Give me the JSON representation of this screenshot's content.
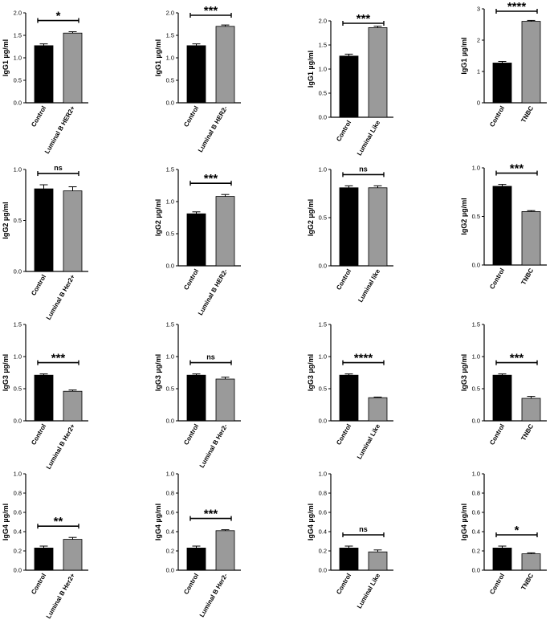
{
  "colors": {
    "control": "#000000",
    "case": "#9a9a9a",
    "axis": "#000000"
  },
  "chart_data": [
    {
      "type": "bar",
      "ylabel": "IgG1 µg/ml",
      "ylim": [
        0,
        2.0
      ],
      "yticks": [
        "0.0",
        "0.5",
        "1.0",
        "1.5",
        "2.0"
      ],
      "categories": [
        "Control",
        "Luminal B HER2+"
      ],
      "values": [
        1.27,
        1.55
      ],
      "errors": [
        0.04,
        0.03
      ],
      "significance": "*"
    },
    {
      "type": "bar",
      "ylabel": "IgG1 µg/ml",
      "ylim": [
        0,
        2.0
      ],
      "yticks": [
        "0.0",
        "0.5",
        "1.0",
        "1.5",
        "2.0"
      ],
      "categories": [
        "Control",
        "Luminal B HER2-"
      ],
      "values": [
        1.27,
        1.7
      ],
      "errors": [
        0.04,
        0.03
      ],
      "significance": "***"
    },
    {
      "type": "bar",
      "ylabel": "IgG1 µg/ml",
      "ylim": [
        0,
        2.0
      ],
      "yticks": [
        "0.0",
        "0.5",
        "1.0",
        "1.5",
        "2.0"
      ],
      "categories": [
        "Control",
        "Luminal Like"
      ],
      "values": [
        1.27,
        1.86
      ],
      "errors": [
        0.04,
        0.03
      ],
      "significance": "***"
    },
    {
      "type": "bar",
      "ylabel": "IgG1 µg/ml",
      "ylim": [
        0,
        3
      ],
      "yticks": [
        "0",
        "1",
        "2",
        "3"
      ],
      "categories": [
        "Control",
        "TNBC"
      ],
      "values": [
        1.27,
        2.6
      ],
      "errors": [
        0.05,
        0.03
      ],
      "significance": "****"
    },
    {
      "type": "bar",
      "ylabel": "IgG2 µg/ml",
      "ylim": [
        0,
        1.0
      ],
      "yticks": [
        "0.0",
        "0.5",
        "1.0"
      ],
      "categories": [
        "Control",
        "Luminal B Her2+"
      ],
      "values": [
        0.81,
        0.79
      ],
      "errors": [
        0.04,
        0.04
      ],
      "significance": "ns"
    },
    {
      "type": "bar",
      "ylabel": "IgG2 µg/ml",
      "ylim": [
        0,
        1.5
      ],
      "yticks": [
        "0.0",
        "0.5",
        "1.0",
        "1.5"
      ],
      "categories": [
        "Control",
        "Luminal B HER2-"
      ],
      "values": [
        0.81,
        1.08
      ],
      "errors": [
        0.03,
        0.03
      ],
      "significance": "***"
    },
    {
      "type": "bar",
      "ylabel": "IgG2 µg/ml",
      "ylim": [
        0,
        1.0
      ],
      "yticks": [
        "0.0",
        "0.5",
        "1.0"
      ],
      "categories": [
        "Control",
        "Luminal like"
      ],
      "values": [
        0.81,
        0.81
      ],
      "errors": [
        0.02,
        0.02
      ],
      "significance": "ns"
    },
    {
      "type": "bar",
      "ylabel": "IgG2 µg/ml",
      "ylim": [
        0,
        1.0
      ],
      "yticks": [
        "0.0",
        "0.5",
        "1.0"
      ],
      "categories": [
        "Control",
        "TNBC"
      ],
      "values": [
        0.81,
        0.55
      ],
      "errors": [
        0.02,
        0.01
      ],
      "significance": "***"
    },
    {
      "type": "bar",
      "ylabel": "IgG3 µg/ml",
      "ylim": [
        0,
        1.5
      ],
      "yticks": [
        "0.0",
        "0.5",
        "1.0",
        "1.5"
      ],
      "categories": [
        "Control",
        "Luminal B Her2+"
      ],
      "values": [
        0.71,
        0.46
      ],
      "errors": [
        0.02,
        0.02
      ],
      "significance": "***"
    },
    {
      "type": "bar",
      "ylabel": "IgG3 µg/ml",
      "ylim": [
        0,
        1.5
      ],
      "yticks": [
        "0.0",
        "0.5",
        "1.0",
        "1.5"
      ],
      "categories": [
        "Control",
        "Luminal B Her2-"
      ],
      "values": [
        0.71,
        0.65
      ],
      "errors": [
        0.02,
        0.03
      ],
      "significance": "ns"
    },
    {
      "type": "bar",
      "ylabel": "IgG3 µg/ml",
      "ylim": [
        0,
        1.5
      ],
      "yticks": [
        "0.0",
        "0.5",
        "1.0",
        "1.5"
      ],
      "categories": [
        "Control",
        "Luminal Like"
      ],
      "values": [
        0.71,
        0.36
      ],
      "errors": [
        0.02,
        0.01
      ],
      "significance": "****"
    },
    {
      "type": "bar",
      "ylabel": "IgG3 µg/ml",
      "ylim": [
        0,
        1.5
      ],
      "yticks": [
        "0.0",
        "0.5",
        "1.0",
        "1.5"
      ],
      "categories": [
        "Control",
        "TNBC"
      ],
      "values": [
        0.71,
        0.35
      ],
      "errors": [
        0.02,
        0.03
      ],
      "significance": "***"
    },
    {
      "type": "bar",
      "ylabel": "IgG4 µg/ml",
      "ylim": [
        0,
        1.0
      ],
      "yticks": [
        "0.0",
        "0.2",
        "0.4",
        "0.6",
        "0.8",
        "1.0"
      ],
      "categories": [
        "Control",
        "Luminal B Her2+"
      ],
      "values": [
        0.23,
        0.32
      ],
      "errors": [
        0.02,
        0.02
      ],
      "significance": "**"
    },
    {
      "type": "bar",
      "ylabel": "IgG4 µg/ml",
      "ylim": [
        0,
        1.0
      ],
      "yticks": [
        "0.0",
        "0.2",
        "0.4",
        "0.6",
        "0.8",
        "1.0"
      ],
      "categories": [
        "Control",
        "Luminal B Her2-"
      ],
      "values": [
        0.23,
        0.41
      ],
      "errors": [
        0.02,
        0.01
      ],
      "significance": "***"
    },
    {
      "type": "bar",
      "ylabel": "IgG4 µg/ml",
      "ylim": [
        0,
        1.0
      ],
      "yticks": [
        "0.0",
        "0.2",
        "0.4",
        "0.6",
        "0.8",
        "1.0"
      ],
      "categories": [
        "Control",
        "Luminal Like"
      ],
      "values": [
        0.23,
        0.19
      ],
      "errors": [
        0.02,
        0.02
      ],
      "significance": "ns"
    },
    {
      "type": "bar",
      "ylabel": "IgG4 µg/ml",
      "ylim": [
        0,
        1.0
      ],
      "yticks": [
        "0.0",
        "0.2",
        "0.4",
        "0.6",
        "0.8",
        "1.0"
      ],
      "categories": [
        "Control",
        "TNBC"
      ],
      "values": [
        0.23,
        0.17
      ],
      "errors": [
        0.02,
        0.01
      ],
      "significance": "*"
    }
  ]
}
